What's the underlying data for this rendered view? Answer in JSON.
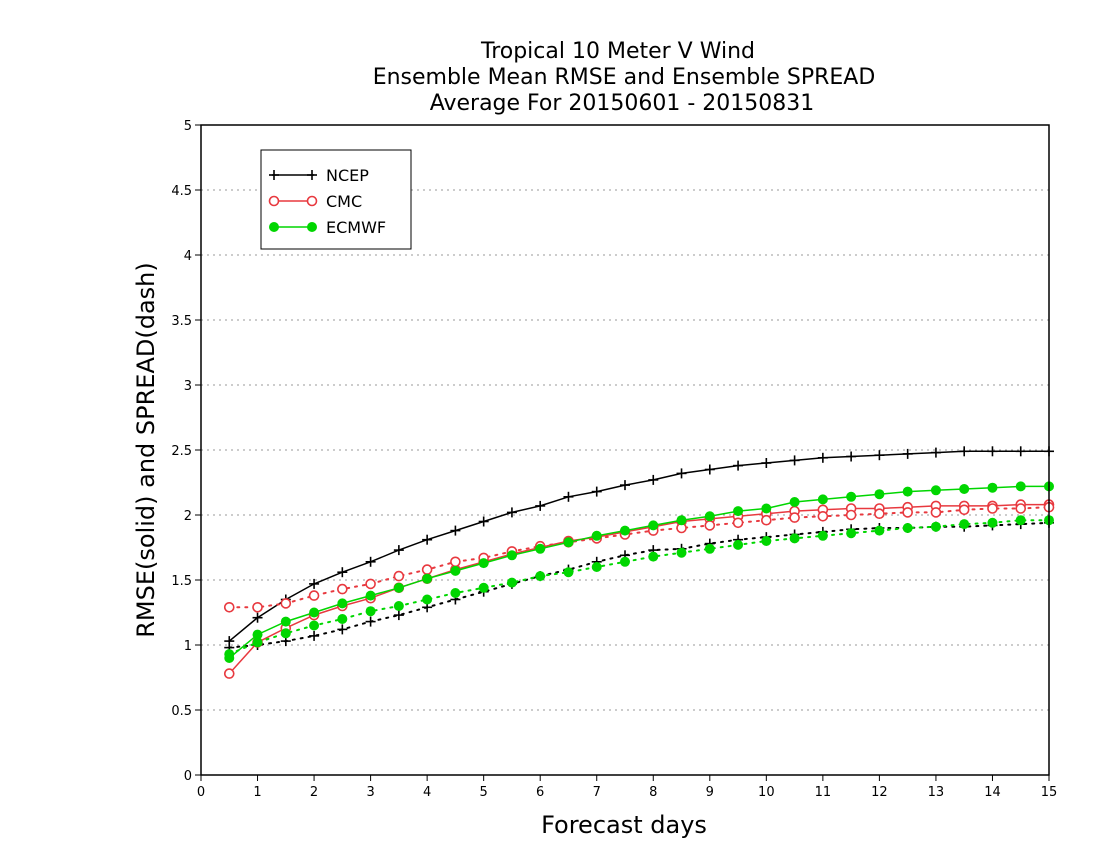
{
  "chart_data": {
    "type": "line",
    "title": [
      "Tropical 10 Meter V Wind",
      "Ensemble Mean RMSE and Ensemble SPREAD",
      "Average For 20150601 - 20150831"
    ],
    "xlabel": "Forecast days",
    "ylabel": "RMSE(solid) and SPREAD(dash)",
    "xlim": [
      0,
      15
    ],
    "ylim": [
      0,
      5
    ],
    "xticks": [
      0,
      1,
      2,
      3,
      4,
      5,
      6,
      7,
      8,
      9,
      10,
      11,
      12,
      13,
      14,
      15
    ],
    "xtick_labels": [
      "0",
      "1",
      "2",
      "3",
      "4",
      "5",
      "6",
      "7",
      "8",
      "9",
      "10",
      "11",
      "12",
      "13",
      "14",
      "15"
    ],
    "yticks": [
      0,
      0.5,
      1,
      1.5,
      2,
      2.5,
      3,
      3.5,
      4,
      4.5,
      5
    ],
    "ytick_labels": [
      "0",
      "0.5",
      "1",
      "1.5",
      "2",
      "2.5",
      "3",
      "3.5",
      "4",
      "4.5",
      "5"
    ],
    "grid": "horizontal dotted",
    "legend_position": "top-left",
    "x": [
      0.5,
      1,
      1.5,
      2,
      2.5,
      3,
      3.5,
      4,
      4.5,
      5,
      5.5,
      6,
      6.5,
      7,
      7.5,
      8,
      8.5,
      9,
      9.5,
      10,
      10.5,
      11,
      11.5,
      12,
      12.5,
      13,
      13.5,
      14,
      14.5,
      15
    ],
    "series": [
      {
        "name": "NCEP",
        "color": "#000000",
        "marker": "plus",
        "rmse": [
          1.03,
          1.21,
          1.35,
          1.47,
          1.56,
          1.64,
          1.73,
          1.81,
          1.88,
          1.95,
          2.02,
          2.07,
          2.14,
          2.18,
          2.23,
          2.27,
          2.32,
          2.35,
          2.38,
          2.4,
          2.42,
          2.44,
          2.45,
          2.46,
          2.47,
          2.48,
          2.49,
          2.49,
          2.49,
          2.49
        ],
        "spread": [
          0.98,
          1.0,
          1.03,
          1.07,
          1.12,
          1.18,
          1.23,
          1.29,
          1.35,
          1.41,
          1.47,
          1.53,
          1.58,
          1.64,
          1.69,
          1.73,
          1.74,
          1.78,
          1.81,
          1.83,
          1.85,
          1.87,
          1.89,
          1.9,
          1.9,
          1.91,
          1.91,
          1.92,
          1.93,
          1.94
        ]
      },
      {
        "name": "CMC",
        "color": "#e8393f",
        "marker": "open-circle",
        "rmse": [
          0.78,
          1.02,
          1.13,
          1.23,
          1.3,
          1.36,
          1.44,
          1.51,
          1.58,
          1.64,
          1.7,
          1.75,
          1.8,
          1.83,
          1.87,
          1.91,
          1.95,
          1.97,
          1.99,
          2.01,
          2.03,
          2.04,
          2.05,
          2.05,
          2.06,
          2.07,
          2.07,
          2.07,
          2.08,
          2.08
        ],
        "spread": [
          1.29,
          1.29,
          1.32,
          1.38,
          1.43,
          1.47,
          1.53,
          1.58,
          1.64,
          1.67,
          1.72,
          1.76,
          1.79,
          1.82,
          1.85,
          1.88,
          1.9,
          1.92,
          1.94,
          1.96,
          1.98,
          1.99,
          2.0,
          2.01,
          2.02,
          2.02,
          2.04,
          2.05,
          2.05,
          2.06
        ]
      },
      {
        "name": "ECMWF",
        "color": "#00d600",
        "marker": "filled-circle",
        "rmse": [
          0.9,
          1.08,
          1.18,
          1.25,
          1.32,
          1.38,
          1.44,
          1.51,
          1.57,
          1.63,
          1.69,
          1.74,
          1.79,
          1.84,
          1.88,
          1.92,
          1.96,
          1.99,
          2.03,
          2.05,
          2.1,
          2.12,
          2.14,
          2.16,
          2.18,
          2.19,
          2.2,
          2.21,
          2.22,
          2.22
        ],
        "spread": [
          0.93,
          1.02,
          1.09,
          1.15,
          1.2,
          1.26,
          1.3,
          1.35,
          1.4,
          1.44,
          1.48,
          1.53,
          1.56,
          1.6,
          1.64,
          1.68,
          1.71,
          1.74,
          1.77,
          1.8,
          1.82,
          1.84,
          1.86,
          1.88,
          1.9,
          1.91,
          1.93,
          1.94,
          1.96,
          1.96
        ]
      }
    ]
  }
}
